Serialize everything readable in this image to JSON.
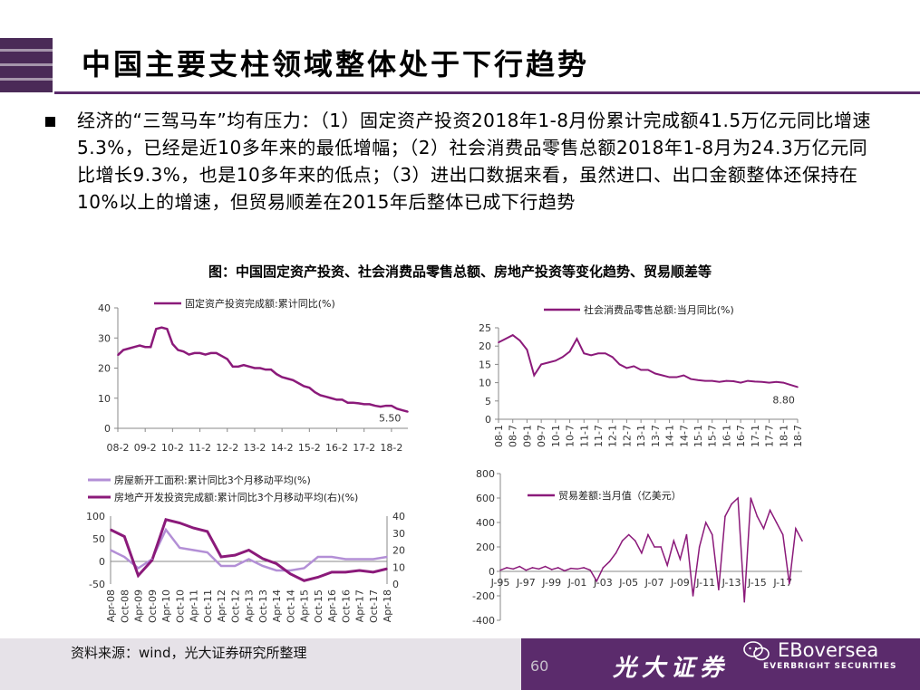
{
  "title": "中国主要支柱领域整体处于下行趋势",
  "body_text": "经济的“三驾马车”均有压力：（1）固定资产投资2018年1-8月份累计完成额41.5万亿元同比增速5.3%，已经是近10多年来的最低增幅；（2）社会消费品零售总额2018年1-8月为24.3万亿元同比增长9.3%，也是10多年来的低点；（3）进出口数据来看，虽然进口、出口金额整体还保持在10%以上的增速，但贸易顺差在2015年后整体已成下行趋势",
  "figure_caption": "图：中国固定资产投资、社会消费品零售总额、房地产投资等变化趋势、贸易顺差等",
  "footer": {
    "source_note": "资料来源：wind，光大证券研究所整理",
    "page_number": "60",
    "brand_cn": "光大证券",
    "brand_en": "EVERBRIGHT SECURITIES",
    "watermark": "EBoversea",
    "watermark_icon": "wechat-icon"
  },
  "colors": {
    "accent": "#5b2b6c",
    "series_dark": "#8b1a7a",
    "series_light": "#b38fd6"
  },
  "chart_data": [
    {
      "type": "line",
      "legend": "固定资产投资完成额:累计同比(%)",
      "ylim": [
        0,
        40
      ],
      "yticks": [
        0,
        10,
        20,
        30,
        40
      ],
      "xticks": [
        "08-2",
        "09-2",
        "10-2",
        "11-2",
        "12-2",
        "13-2",
        "14-2",
        "15-2",
        "16-2",
        "17-2",
        "18-2"
      ],
      "annotation": "5.50",
      "series": [
        {
          "name": "固定资产投资完成额:累计同比(%)",
          "x": [
            0,
            0.2,
            0.4,
            0.6,
            0.8,
            1.0,
            1.2,
            1.4,
            1.6,
            1.8,
            2.0,
            2.2,
            2.4,
            2.6,
            2.8,
            3.0,
            3.2,
            3.4,
            3.6,
            3.8,
            4.0,
            4.2,
            4.4,
            4.6,
            4.8,
            5.0,
            5.2,
            5.4,
            5.6,
            5.8,
            6.0,
            6.2,
            6.4,
            6.6,
            6.8,
            7.0,
            7.2,
            7.4,
            7.6,
            7.8,
            8.0,
            8.2,
            8.4,
            8.6,
            8.8,
            9.0,
            9.2,
            9.4,
            9.6,
            9.8,
            10.0,
            10.2,
            10.4,
            10.6
          ],
          "values": [
            24.3,
            26,
            26.5,
            27,
            27.5,
            27,
            27,
            33,
            33.5,
            33,
            28,
            26,
            25.5,
            24.5,
            25,
            25,
            24.5,
            25,
            25,
            24,
            23,
            20.5,
            20.5,
            21,
            20.5,
            20,
            20,
            19.5,
            19.5,
            18,
            17,
            16.5,
            16,
            15,
            14,
            13.5,
            12,
            11,
            10.5,
            10,
            9.5,
            9.5,
            8.5,
            8.5,
            8.3,
            8,
            8,
            7.5,
            7.2,
            7.5,
            7.5,
            6.5,
            6,
            5.5
          ]
        }
      ]
    },
    {
      "type": "line",
      "legend": "社会消费品零售总额:当月同比(%)",
      "ylim": [
        0,
        25
      ],
      "yticks": [
        0,
        5,
        10,
        15,
        20,
        25
      ],
      "xticks": [
        "08-1",
        "08-7",
        "09-1",
        "09-7",
        "10-1",
        "10-7",
        "11-1",
        "11-7",
        "12-1",
        "12-7",
        "13-1",
        "13-7",
        "14-1",
        "14-7",
        "15-1",
        "15-7",
        "16-1",
        "16-7",
        "17-1",
        "17-7",
        "18-1",
        "18-7"
      ],
      "annotation": "8.80",
      "series": [
        {
          "name": "社会消费品零售总额:当月同比(%)",
          "x": [
            0,
            0.5,
            1,
            1.5,
            2,
            2.5,
            3,
            3.5,
            4,
            4.5,
            5,
            5.5,
            6,
            6.5,
            7,
            7.5,
            8,
            8.5,
            9,
            9.5,
            10,
            10.5,
            11,
            11.5,
            12,
            12.5,
            13,
            13.5,
            14,
            14.5,
            15,
            15.5,
            16,
            16.5,
            17,
            17.5,
            18,
            18.5,
            19,
            19.5,
            20,
            20.5,
            21
          ],
          "values": [
            21,
            22,
            23,
            21.5,
            19,
            12,
            15,
            15.5,
            16,
            17,
            18.5,
            22,
            18,
            17.5,
            18,
            18,
            17,
            15,
            14,
            14.5,
            13.5,
            13.5,
            12.5,
            12,
            11.5,
            11.5,
            12,
            11,
            10.7,
            10.5,
            10.5,
            10.2,
            10.5,
            10.4,
            10,
            10.5,
            10.3,
            10.2,
            10,
            10.2,
            10,
            9.4,
            8.8
          ]
        }
      ]
    },
    {
      "type": "line",
      "legend": [
        "房屋新开工面积:累计同比3个月移动平均(%)",
        "房地产开发投资完成额:累计同比3个月移动平均(右)(%)"
      ],
      "ylim_left": [
        -50,
        100
      ],
      "yticks_left": [
        -50,
        0,
        50,
        100
      ],
      "ylim_right": [
        0,
        40
      ],
      "yticks_right": [
        0,
        10,
        20,
        30,
        40
      ],
      "xticks": [
        "Apr-08",
        "Oct-08",
        "Apr-09",
        "Oct-09",
        "Apr-10",
        "Oct-10",
        "Apr-11",
        "Oct-11",
        "Apr-12",
        "Oct-12",
        "Apr-13",
        "Oct-13",
        "Apr-14",
        "Oct-14",
        "Apr-15",
        "Oct-15",
        "Apr-16",
        "Oct-16",
        "Apr-17",
        "Oct-17",
        "Apr-18"
      ],
      "series": [
        {
          "name": "房屋新开工面积:累计同比3个月移动平均(%)",
          "axis": "left",
          "x": [
            0,
            1,
            2,
            3,
            4,
            5,
            6,
            7,
            8,
            9,
            10,
            11,
            12,
            13,
            14,
            15,
            16,
            17,
            18,
            19,
            20
          ],
          "values": [
            25,
            10,
            -15,
            5,
            70,
            30,
            25,
            20,
            -10,
            -10,
            5,
            -10,
            -20,
            -20,
            -15,
            10,
            10,
            5,
            5,
            5,
            10
          ]
        },
        {
          "name": "房地产开发投资完成额:累计同比3个月移动平均(右)(%)",
          "axis": "right",
          "x": [
            0,
            1,
            2,
            3,
            4,
            5,
            6,
            7,
            8,
            9,
            10,
            11,
            12,
            13,
            14,
            15,
            16,
            17,
            18,
            19,
            20
          ],
          "values": [
            32,
            28,
            5,
            14,
            38,
            36,
            33,
            31,
            16,
            17,
            20,
            15,
            12,
            6,
            2,
            4,
            7,
            7,
            8,
            7,
            9
          ]
        }
      ]
    },
    {
      "type": "line",
      "legend": "贸易差额:当月值（亿美元）",
      "ylim": [
        -400,
        800
      ],
      "yticks": [
        -400,
        -200,
        0,
        200,
        400,
        600,
        800
      ],
      "xticks": [
        "J-95",
        "J-97",
        "J-99",
        "J-01",
        "J-03",
        "J-05",
        "J-07",
        "J-09",
        "J-11",
        "J-13",
        "J-15",
        "J-17"
      ],
      "series": [
        {
          "name": "贸易差额:当月值（亿美元）",
          "x": [
            0,
            0.5,
            1,
            1.5,
            2,
            2.5,
            3,
            3.5,
            4,
            4.5,
            5,
            5.5,
            6,
            6.5,
            7,
            7.5,
            8,
            8.5,
            9,
            9.5,
            10,
            10.5,
            11,
            11.5,
            12,
            12.5,
            13,
            13.5,
            14,
            14.5,
            15,
            15.5,
            16,
            16.5,
            17,
            17.5,
            18,
            18.5,
            19,
            19.5,
            20,
            20.5,
            21,
            21.5,
            22,
            22.5,
            23,
            23.5
          ],
          "values": [
            10,
            30,
            20,
            40,
            10,
            30,
            20,
            40,
            15,
            30,
            5,
            25,
            20,
            30,
            10,
            -80,
            30,
            80,
            150,
            250,
            300,
            250,
            150,
            300,
            200,
            200,
            50,
            250,
            100,
            300,
            -200,
            200,
            400,
            300,
            -150,
            450,
            550,
            600,
            -250,
            600,
            450,
            350,
            500,
            400,
            300,
            -100,
            350,
            250
          ]
        }
      ]
    }
  ]
}
